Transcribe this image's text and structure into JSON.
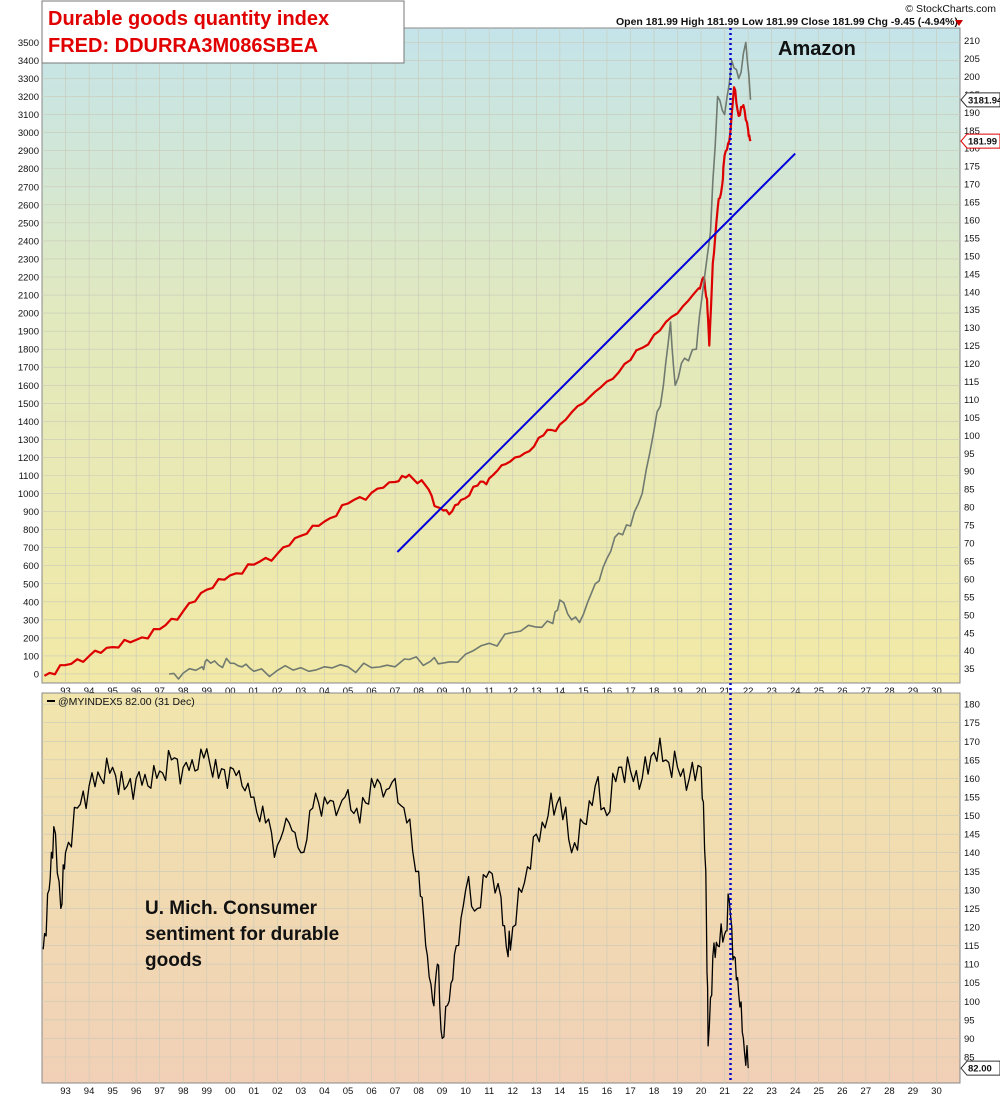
{
  "header": {
    "title_line1": "Durable goods quantity index",
    "title_line2": "FRED: DDURRA3M086SBEA",
    "ohlc": "Open 181.99  High 181.99  Low 181.99  Close 181.99  Chg -9.45 (-4.94%)",
    "watermark": "© StockCharts.com"
  },
  "annotations": {
    "amazon": "Amazon",
    "sentiment_line1": "U. Mich. Consumer",
    "sentiment_line2": "sentiment for durable",
    "sentiment_line3": "goods"
  },
  "colors": {
    "durable": "#dd0000",
    "amazon": "#707a70",
    "trend": "#0000dd",
    "sentiment": "#000000",
    "marker": "#0000cc"
  },
  "chart_data": [
    {
      "type": "line",
      "panel": "top",
      "x_ticks": [
        "93",
        "94",
        "95",
        "96",
        "97",
        "98",
        "99",
        "00",
        "01",
        "02",
        "03",
        "04",
        "05",
        "06",
        "07",
        "08",
        "09",
        "10",
        "11",
        "12",
        "13",
        "14",
        "15",
        "16",
        "17",
        "18",
        "19",
        "20",
        "21",
        "22",
        "23",
        "24",
        "25",
        "26",
        "27",
        "28",
        "29",
        "30"
      ],
      "x_range": [
        1992.0,
        2031.0
      ],
      "left_axis": {
        "ticks": [
          0,
          100,
          200,
          300,
          400,
          500,
          600,
          700,
          800,
          900,
          1000,
          1100,
          1200,
          1300,
          1400,
          1500,
          1600,
          1700,
          1800,
          1900,
          2000,
          2100,
          2200,
          2300,
          2400,
          2500,
          2600,
          2700,
          2800,
          2900,
          3000,
          3100,
          3200,
          3300,
          3400,
          3500
        ],
        "range": [
          -50,
          3580
        ]
      },
      "right_axis": {
        "ticks": [
          35,
          40,
          45,
          50,
          55,
          60,
          65,
          70,
          75,
          80,
          85,
          90,
          95,
          100,
          105,
          110,
          115,
          120,
          125,
          130,
          135,
          140,
          145,
          150,
          155,
          160,
          165,
          170,
          175,
          180,
          185,
          190,
          195,
          200,
          205,
          210
        ],
        "range": [
          31,
          213.5
        ]
      },
      "series": [
        {
          "name": "durable",
          "axis": "right",
          "x": [
            1992.1,
            1993.0,
            1994.0,
            1995.0,
            1996.0,
            1997.0,
            1998.0,
            1999.0,
            2000.0,
            2001.0,
            2002.0,
            2003.0,
            2004.0,
            2005.0,
            2006.0,
            2007.0,
            2007.6,
            2008.3,
            2008.8,
            2009.3,
            2009.8,
            2010.5,
            2011.0,
            2011.7,
            2012.5,
            2013.3,
            2014.0,
            2015.0,
            2016.0,
            2017.0,
            2018.0,
            2019.0,
            2019.9,
            2020.1,
            2020.25,
            2020.35,
            2020.5,
            2020.7,
            2020.9,
            2021.0,
            2021.2,
            2021.4,
            2021.6,
            2021.8,
            2022.0,
            2022.1
          ],
          "y": [
            33,
            36,
            38.5,
            41,
            43,
            46,
            51,
            57,
            61,
            64,
            67,
            72,
            76,
            81,
            84,
            87,
            89,
            86,
            80,
            78,
            82,
            86,
            88,
            92,
            95,
            100,
            103,
            109,
            115,
            121,
            128,
            134,
            141,
            144,
            138,
            125,
            148,
            163,
            170,
            178,
            182,
            197,
            189,
            192,
            185,
            182
          ],
          "y_close": 181.99
        },
        {
          "name": "amazon",
          "axis": "left",
          "x": [
            1997.4,
            1998.0,
            1998.8,
            1999.0,
            1999.5,
            2000.0,
            2000.5,
            2001.0,
            2002.0,
            2003.0,
            2004.0,
            2005.0,
            2006.0,
            2007.0,
            2007.6,
            2008.5,
            2009.0,
            2010.0,
            2011.0,
            2012.0,
            2013.0,
            2013.7,
            2014.0,
            2014.5,
            2015.0,
            2015.5,
            2016.0,
            2016.5,
            2017.0,
            2017.5,
            2018.0,
            2018.4,
            2018.7,
            2018.9,
            2019.3,
            2019.8,
            2020.0,
            2020.4,
            2020.7,
            2021.0,
            2021.3,
            2021.6,
            2021.9,
            2022.1
          ],
          "y": [
            0,
            5,
            40,
            80,
            50,
            60,
            40,
            15,
            20,
            35,
            40,
            40,
            35,
            40,
            80,
            70,
            60,
            110,
            170,
            230,
            260,
            280,
            410,
            300,
            330,
            500,
            640,
            780,
            820,
            1000,
            1350,
            1600,
            1950,
            1600,
            1750,
            1800,
            2050,
            2450,
            3200,
            3100,
            3400,
            3300,
            3500,
            3181.94
          ],
          "y_close": 3181.94
        },
        {
          "name": "trend",
          "axis": "right",
          "x": [
            2007.1,
            2024.0
          ],
          "y": [
            67.5,
            178.5
          ]
        }
      ],
      "marker_x": 2021.25
    },
    {
      "type": "line",
      "panel": "bottom",
      "legend": "@MYINDEX5 82.00 (31 Dec)",
      "x_ticks": [
        "93",
        "94",
        "95",
        "96",
        "97",
        "98",
        "99",
        "00",
        "01",
        "02",
        "03",
        "04",
        "05",
        "06",
        "07",
        "08",
        "09",
        "10",
        "11",
        "12",
        "13",
        "14",
        "15",
        "16",
        "17",
        "18",
        "19",
        "20",
        "21",
        "22",
        "23",
        "24",
        "25",
        "26",
        "27",
        "28",
        "29",
        "30"
      ],
      "right_axis": {
        "ticks": [
          85,
          90,
          95,
          100,
          105,
          110,
          115,
          120,
          125,
          130,
          135,
          140,
          145,
          150,
          155,
          160,
          165,
          170,
          175,
          180
        ],
        "range": [
          78,
          183
        ]
      },
      "series": [
        {
          "name": "sentiment",
          "axis": "right",
          "x": [
            1992.05,
            1992.3,
            1992.5,
            1992.8,
            1993.0,
            1993.5,
            1994.0,
            1994.5,
            1995.0,
            1995.5,
            1996.0,
            1996.5,
            1997.0,
            1997.5,
            1998.0,
            1998.5,
            1999.0,
            1999.5,
            2000.0,
            2000.5,
            2001.0,
            2001.5,
            2002.0,
            2002.5,
            2003.0,
            2003.5,
            2004.0,
            2004.5,
            2005.0,
            2005.5,
            2006.0,
            2006.5,
            2007.0,
            2007.5,
            2008.0,
            2008.3,
            2008.6,
            2008.8,
            2009.0,
            2009.3,
            2009.6,
            2010.0,
            2010.5,
            2011.0,
            2011.5,
            2011.8,
            2012.0,
            2012.5,
            2013.0,
            2013.5,
            2014.0,
            2014.5,
            2015.0,
            2015.5,
            2016.0,
            2016.5,
            2017.0,
            2017.5,
            2018.0,
            2018.5,
            2019.0,
            2019.5,
            2020.0,
            2020.2,
            2020.3,
            2020.5,
            2020.7,
            2021.0,
            2021.2,
            2021.4,
            2021.6,
            2021.8,
            2022.0
          ],
          "y": [
            114,
            130,
            147,
            125,
            140,
            152,
            158,
            160,
            163,
            157,
            160,
            158,
            162,
            165,
            163,
            162,
            168,
            160,
            163,
            158,
            155,
            148,
            142,
            148,
            140,
            152,
            155,
            150,
            157,
            148,
            160,
            155,
            160,
            148,
            135,
            115,
            100,
            110,
            90,
            100,
            115,
            130,
            125,
            135,
            128,
            112,
            120,
            132,
            145,
            150,
            155,
            140,
            148,
            158,
            150,
            163,
            162,
            160,
            167,
            165,
            163,
            160,
            163,
            135,
            88,
            112,
            115,
            118,
            127,
            112,
            102,
            90,
            82
          ],
          "y_close": 82.0
        }
      ],
      "marker_x": 2021.25
    }
  ]
}
